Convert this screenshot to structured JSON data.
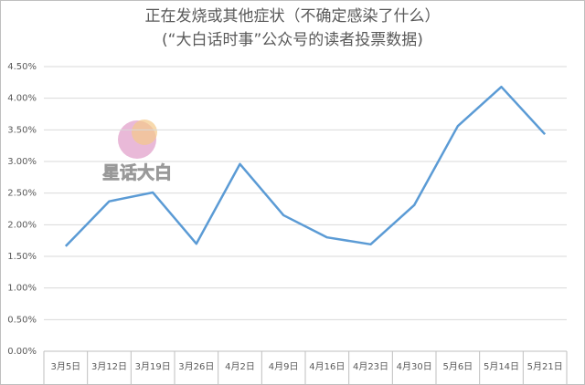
{
  "chart_data": {
    "type": "line",
    "title": "正在发烧或其他症状（不确定感染了什么）",
    "subtitle": "(“大白话时事”公众号的读者投票数据)",
    "watermark": "星话大白",
    "categories": [
      "3月5日",
      "3月12日",
      "3月19日",
      "3月26日",
      "4月2日",
      "4月9日",
      "4月16日",
      "4月23日",
      "4月30日",
      "5月6日",
      "5月14日",
      "5月21日"
    ],
    "values": [
      1.66,
      2.37,
      2.51,
      1.7,
      2.96,
      2.15,
      1.8,
      1.69,
      2.31,
      3.56,
      4.18,
      3.43
    ],
    "color": "#5b9bd5",
    "ylim": [
      0,
      4.5
    ],
    "yticks": [
      {
        "value": 0,
        "label": "0.00%"
      },
      {
        "value": 0.5,
        "label": "0.50%"
      },
      {
        "value": 1,
        "label": "1.00%"
      },
      {
        "value": 1.5,
        "label": "1.50%"
      },
      {
        "value": 2,
        "label": "2.00%"
      },
      {
        "value": 2.5,
        "label": "2.50%"
      },
      {
        "value": 3,
        "label": "3.00%"
      },
      {
        "value": 3.5,
        "label": "3.50%"
      },
      {
        "value": 4,
        "label": "4.00%"
      },
      {
        "value": 4.5,
        "label": "4.50%"
      }
    ],
    "grid": true
  }
}
